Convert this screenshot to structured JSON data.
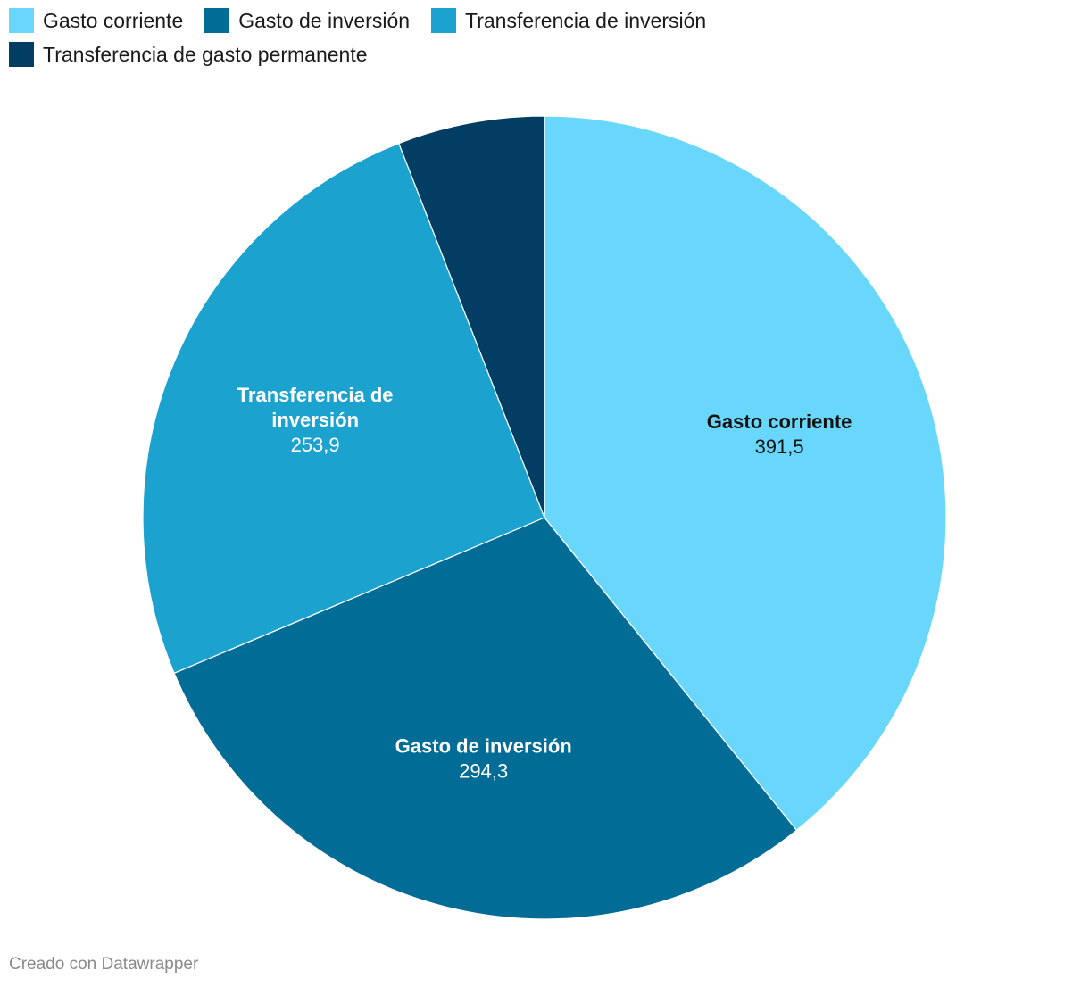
{
  "chart_data": {
    "type": "pie",
    "slices": [
      {
        "label": "Gasto corriente",
        "value": 391.5,
        "display": "391,5",
        "color": "#69d7fb",
        "text_color": "#111111",
        "label_lines": [
          "Gasto corriente"
        ]
      },
      {
        "label": "Gasto de inversión",
        "value": 294.3,
        "display": "294,3",
        "color": "#016c96",
        "text_color": "#ffffff",
        "label_lines": [
          "Gasto de inversión"
        ]
      },
      {
        "label": "Transferencia de inversión",
        "value": 253.9,
        "display": "253,9",
        "color": "#1ca2cf",
        "text_color": "#ffffff",
        "label_lines": [
          "Transferencia de",
          "inversión"
        ]
      },
      {
        "label": "Transferencia de gasto permanente",
        "value": 59.0,
        "display": "",
        "color": "#023e63",
        "text_color": "#ffffff",
        "label_lines": []
      }
    ],
    "legend_position": "top-left"
  },
  "legend": [
    {
      "label": "Gasto corriente",
      "color": "#69d7fb"
    },
    {
      "label": "Gasto de inversión",
      "color": "#016c96"
    },
    {
      "label": "Transferencia de inversión",
      "color": "#1ca2cf"
    },
    {
      "label": "Transferencia de gasto permanente",
      "color": "#023e63"
    }
  ],
  "footer": {
    "credit": "Creado con Datawrapper"
  }
}
